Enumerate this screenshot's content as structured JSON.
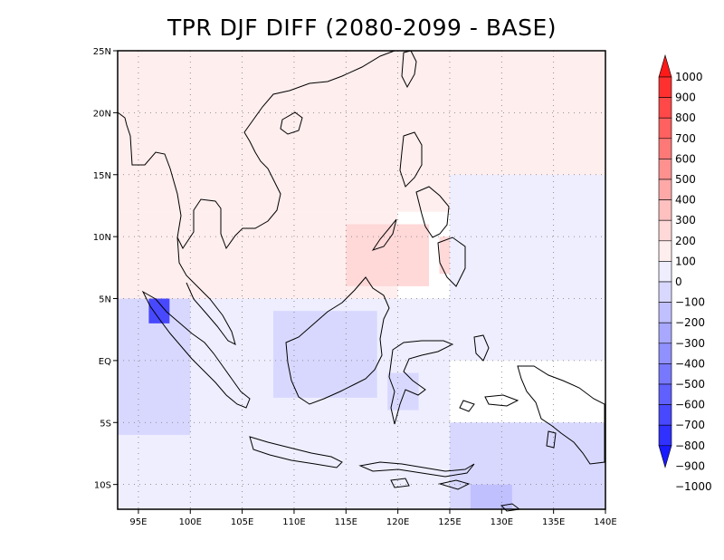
{
  "chart_data": {
    "type": "heatmap",
    "title": "TPR DJF DIFF (2080-2099 - BASE)",
    "x_axis": {
      "range": [
        93,
        140
      ],
      "ticks": [
        95,
        100,
        105,
        110,
        115,
        120,
        125,
        130,
        135,
        140
      ],
      "tick_labels": [
        "95E",
        "100E",
        "105E",
        "110E",
        "115E",
        "120E",
        "125E",
        "130E",
        "135E",
        "140E"
      ]
    },
    "y_axis": {
      "range": [
        -12,
        25
      ],
      "ticks": [
        25,
        20,
        15,
        10,
        5,
        0,
        -5,
        -10
      ],
      "tick_labels": [
        "25N",
        "20N",
        "15N",
        "10N",
        "5N",
        "EQ",
        "5S",
        "10S"
      ]
    },
    "grid": true,
    "legend": {
      "placement": "right",
      "levels": [
        1000,
        900,
        800,
        700,
        600,
        500,
        400,
        300,
        200,
        100,
        0,
        -100,
        -200,
        -300,
        -400,
        -500,
        -600,
        -700,
        -800,
        -900,
        -1000
      ],
      "labels": [
        "1000",
        "900",
        "800",
        "700",
        "600",
        "500",
        "400",
        "300",
        "200",
        "100",
        "0",
        "−100",
        "−200",
        "−300",
        "−400",
        "−500",
        "−600",
        "−700",
        "−800",
        "−900",
        "−1000"
      ],
      "colors": [
        "#ff1a1a",
        "#ff3030",
        "#ff4848",
        "#ff6060",
        "#ff7878",
        "#ff9090",
        "#ffa8a8",
        "#ffc0c0",
        "#ffd8d8",
        "#ffeeee",
        "#eeeeff",
        "#d8d8ff",
        "#c0c0ff",
        "#a8a8ff",
        "#9090ff",
        "#7878ff",
        "#6060ff",
        "#4848ff",
        "#3030ff",
        "#1a1aff"
      ]
    },
    "regions": [
      {
        "lon": [
          93,
          140
        ],
        "lat": [
          12,
          25
        ],
        "value": 50
      },
      {
        "lon": [
          93,
          120
        ],
        "lat": [
          5,
          12
        ],
        "value": 20
      },
      {
        "lon": [
          115,
          123
        ],
        "lat": [
          6,
          11
        ],
        "value": 150
      },
      {
        "lon": [
          124,
          128
        ],
        "lat": [
          7,
          10
        ],
        "value": 120
      },
      {
        "lon": [
          125,
          140
        ],
        "lat": [
          0,
          15
        ],
        "value": -60
      },
      {
        "lon": [
          93,
          125
        ],
        "lat": [
          -6,
          5
        ],
        "value": -80
      },
      {
        "lon": [
          108,
          118
        ],
        "lat": [
          -3,
          4
        ],
        "value": -150
      },
      {
        "lon": [
          119,
          122
        ],
        "lat": [
          -4,
          -1
        ],
        "value": -120
      },
      {
        "lon": [
          93,
          100
        ],
        "lat": [
          -12,
          5
        ],
        "value": -120
      },
      {
        "lon": [
          96,
          98
        ],
        "lat": [
          3,
          5
        ],
        "value": -700
      },
      {
        "lon": [
          93,
          140
        ],
        "lat": [
          -12,
          -6
        ],
        "value": -60
      },
      {
        "lon": [
          125,
          140
        ],
        "lat": [
          -12,
          -5
        ],
        "value": -120
      },
      {
        "lon": [
          127,
          131
        ],
        "lat": [
          -12,
          -10
        ],
        "value": -250
      }
    ]
  }
}
